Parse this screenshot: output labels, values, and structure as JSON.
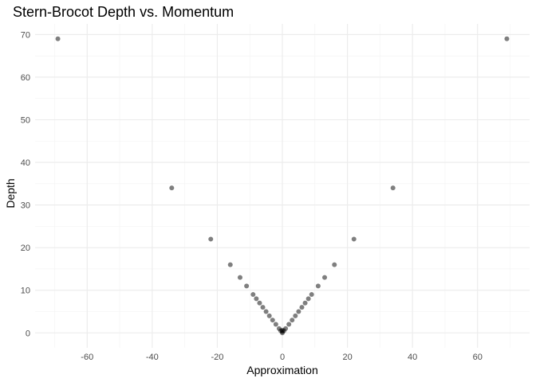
{
  "chart_data": {
    "type": "scatter",
    "title": "Stern-Brocot Depth vs. Momentum",
    "xlabel": "Approximation",
    "ylabel": "Depth",
    "xlim": [
      -76,
      76
    ],
    "ylim": [
      -3.5,
      72.5
    ],
    "x_ticks": [
      -60,
      -40,
      -20,
      0,
      20,
      40,
      60
    ],
    "y_ticks": [
      0,
      10,
      20,
      30,
      40,
      50,
      60,
      70
    ],
    "grid": true,
    "legend": "none",
    "point_color": "#000000",
    "point_opacity": 0.5,
    "points": [
      {
        "x": -69,
        "y": 69
      },
      {
        "x": 69,
        "y": 69
      },
      {
        "x": -34,
        "y": 34
      },
      {
        "x": 34,
        "y": 34
      },
      {
        "x": -22,
        "y": 22
      },
      {
        "x": 22,
        "y": 22
      },
      {
        "x": -16,
        "y": 16
      },
      {
        "x": 16,
        "y": 16
      },
      {
        "x": -13,
        "y": 13
      },
      {
        "x": 13,
        "y": 13
      },
      {
        "x": -11,
        "y": 11
      },
      {
        "x": 11,
        "y": 11
      },
      {
        "x": -9,
        "y": 9
      },
      {
        "x": 9,
        "y": 9
      },
      {
        "x": -8,
        "y": 8
      },
      {
        "x": 8,
        "y": 8
      },
      {
        "x": -7,
        "y": 7
      },
      {
        "x": 7,
        "y": 7
      },
      {
        "x": -6,
        "y": 6
      },
      {
        "x": 6,
        "y": 6
      },
      {
        "x": -5,
        "y": 5
      },
      {
        "x": 5,
        "y": 5
      },
      {
        "x": -4,
        "y": 4
      },
      {
        "x": 4,
        "y": 4
      },
      {
        "x": -3,
        "y": 3
      },
      {
        "x": 3,
        "y": 3
      },
      {
        "x": -2,
        "y": 2
      },
      {
        "x": 2,
        "y": 2
      },
      {
        "x": -1,
        "y": 1
      },
      {
        "x": 1,
        "y": 1
      },
      {
        "x": 0,
        "y": 0
      },
      {
        "x": 0,
        "y": 0.3
      },
      {
        "x": 0,
        "y": 0.6
      },
      {
        "x": -0.5,
        "y": 0.5
      },
      {
        "x": 0.5,
        "y": 0.5
      }
    ]
  }
}
